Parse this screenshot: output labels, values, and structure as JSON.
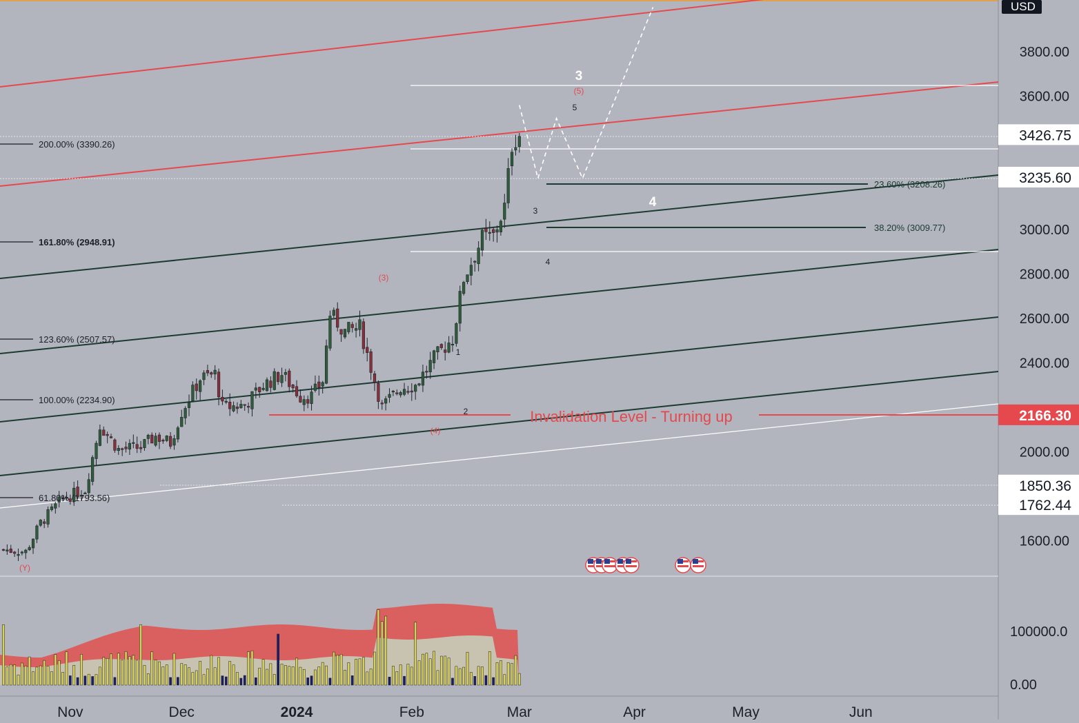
{
  "chart_data": {
    "type": "candlestick",
    "price_axis": {
      "unit_label": "USD",
      "ticks": [
        "3800.00",
        "3600.00",
        "3000.00",
        "2800.00",
        "2600.00",
        "2400.00",
        "2000.00",
        "1600.00"
      ],
      "badges": [
        {
          "label": "3426.75",
          "value": 3426.75,
          "style": "light"
        },
        {
          "label": "3235.60",
          "value": 3235.6,
          "style": "light"
        },
        {
          "label": "2166.30",
          "value": 2166.3,
          "style": "red"
        },
        {
          "label": "1850.36",
          "value": 1850.36,
          "style": "light"
        },
        {
          "label": "1762.44",
          "value": 1762.44,
          "style": "light"
        }
      ]
    },
    "time_axis": {
      "ticks": [
        "Nov",
        "Dec",
        "2024",
        "Feb",
        "Mar",
        "Apr",
        "May",
        "Jun"
      ]
    },
    "fib_extension_levels": [
      {
        "label": "200.00% (3390.26)",
        "value": 3390.26
      },
      {
        "label": "161.80% (2948.91)",
        "value": 2948.91
      },
      {
        "label": "123.60% (2507.57)",
        "value": 2507.57
      },
      {
        "label": "100.00% (2234.90)",
        "value": 2234.9
      },
      {
        "label": "61.80% (1793.56)",
        "value": 1793.56
      }
    ],
    "fib_retracement_levels": [
      {
        "label": "23.60% (3208.26)",
        "value": 3208.26
      },
      {
        "label": "38.20% (3009.77)",
        "value": 3009.77
      }
    ],
    "invalidation": {
      "label": "Invalidation Level - Turning up",
      "value": 2166.3
    },
    "wave_labels": [
      {
        "text": "3",
        "style": "major-white"
      },
      {
        "text": "(5)",
        "style": "red"
      },
      {
        "text": "5",
        "style": "minor-dark"
      },
      {
        "text": "3",
        "style": "minor-dark"
      },
      {
        "text": "4",
        "style": "minor-dark"
      },
      {
        "text": "(3)",
        "style": "red"
      },
      {
        "text": "1",
        "style": "minor-dark"
      },
      {
        "text": "2",
        "style": "minor-dark"
      },
      {
        "text": "(4)",
        "style": "red"
      },
      {
        "text": "(Y)",
        "style": "red"
      },
      {
        "text": "4",
        "style": "major-white"
      }
    ],
    "volume_axis": {
      "ticks": [
        "100000.0",
        "0.00"
      ]
    },
    "close_path": [
      {
        "date": "2023-10-14",
        "close": 1560
      },
      {
        "date": "2023-10-20",
        "close": 1550
      },
      {
        "date": "2023-10-24",
        "close": 1680
      },
      {
        "date": "2023-10-30",
        "close": 1790
      },
      {
        "date": "2023-11-05",
        "close": 1830
      },
      {
        "date": "2023-11-09",
        "close": 2120
      },
      {
        "date": "2023-11-14",
        "close": 2010
      },
      {
        "date": "2023-11-20",
        "close": 2020
      },
      {
        "date": "2023-11-24",
        "close": 2070
      },
      {
        "date": "2023-11-28",
        "close": 2040
      },
      {
        "date": "2023-12-01",
        "close": 2180
      },
      {
        "date": "2023-12-06",
        "close": 2330
      },
      {
        "date": "2023-12-10",
        "close": 2350
      },
      {
        "date": "2023-12-12",
        "close": 2200
      },
      {
        "date": "2023-12-18",
        "close": 2210
      },
      {
        "date": "2023-12-23",
        "close": 2300
      },
      {
        "date": "2023-12-28",
        "close": 2350
      },
      {
        "date": "2024-01-02",
        "close": 2250
      },
      {
        "date": "2024-01-05",
        "close": 2250
      },
      {
        "date": "2024-01-08",
        "close": 2320
      },
      {
        "date": "2024-01-10",
        "close": 2620
      },
      {
        "date": "2024-01-14",
        "close": 2540
      },
      {
        "date": "2024-01-18",
        "close": 2560
      },
      {
        "date": "2024-01-22",
        "close": 2320
      },
      {
        "date": "2024-01-24",
        "close": 2200
      },
      {
        "date": "2024-01-29",
        "close": 2290
      },
      {
        "date": "2024-02-02",
        "close": 2300
      },
      {
        "date": "2024-02-07",
        "close": 2420
      },
      {
        "date": "2024-02-12",
        "close": 2510
      },
      {
        "date": "2024-02-15",
        "close": 2780
      },
      {
        "date": "2024-02-20",
        "close": 2960
      },
      {
        "date": "2024-02-23",
        "close": 2970
      },
      {
        "date": "2024-02-26",
        "close": 3100
      },
      {
        "date": "2024-02-28",
        "close": 3380
      },
      {
        "date": "2024-02-29",
        "close": 3410
      },
      {
        "date": "2024-03-01",
        "close": 3426.75
      }
    ],
    "projection_path": [
      {
        "date": "2024-03-01",
        "price": 3560
      },
      {
        "date": "2024-03-06",
        "price": 3230
      },
      {
        "date": "2024-03-11",
        "price": 3500
      },
      {
        "date": "2024-03-18",
        "price": 3230
      },
      {
        "date": "2024-04-06",
        "price": 4000
      }
    ]
  }
}
